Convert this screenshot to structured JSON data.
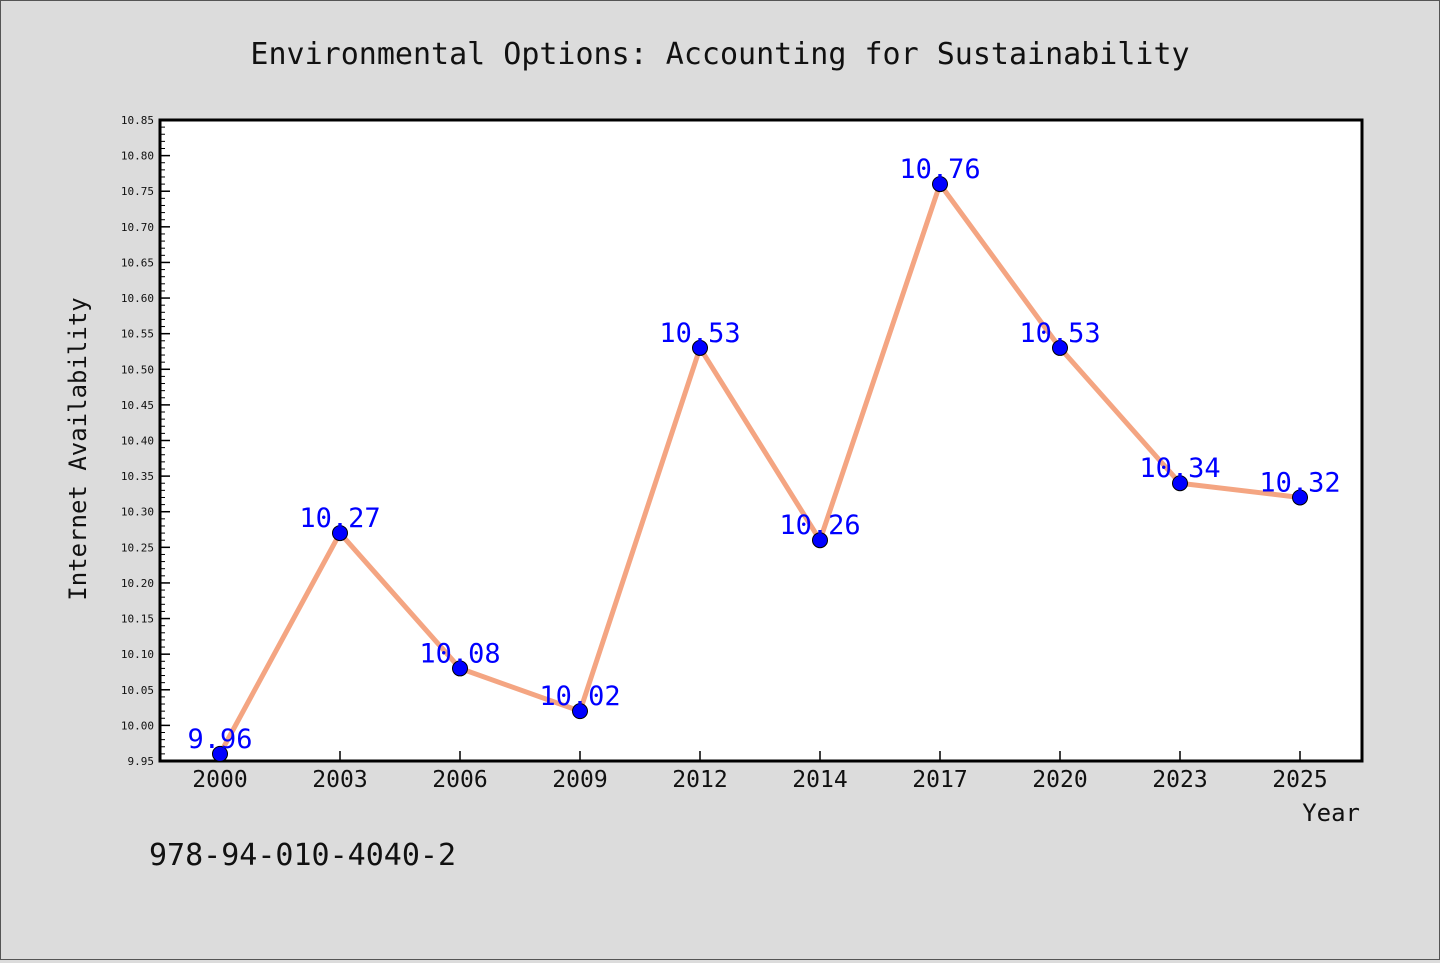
{
  "chart_data": {
    "type": "line",
    "title": "Environmental Options: Accounting for Sustainability",
    "xlabel": "Year",
    "ylabel": "Internet Availability",
    "categories": [
      "2000",
      "2003",
      "2006",
      "2009",
      "2012",
      "2014",
      "2017",
      "2020",
      "2023",
      "2025"
    ],
    "values": [
      9.96,
      10.27,
      10.08,
      10.02,
      10.53,
      10.26,
      10.76,
      10.53,
      10.34,
      10.32
    ],
    "data_labels": [
      "9.96",
      "10.27",
      "10.08",
      "10.02",
      "10.53",
      "10.26",
      "10.76",
      "10.53",
      "10.34",
      "10.32"
    ],
    "ylim": [
      9.95,
      10.85
    ],
    "y_ticks": [
      "9.95",
      "10.00",
      "10.05",
      "10.10",
      "10.15",
      "10.20",
      "10.25",
      "10.30",
      "10.35",
      "10.40",
      "10.45",
      "10.50",
      "10.55",
      "10.60",
      "10.65",
      "10.70",
      "10.75",
      "10.80",
      "10.85"
    ],
    "grid": false,
    "line_color": "#f4a582",
    "marker_color": "#0000ff",
    "label_color": "#0000ff",
    "background_color": "#dcdcdc",
    "plot_background_color": "#ffffff"
  },
  "footer": {
    "isbn": "978-94-010-4040-2"
  }
}
